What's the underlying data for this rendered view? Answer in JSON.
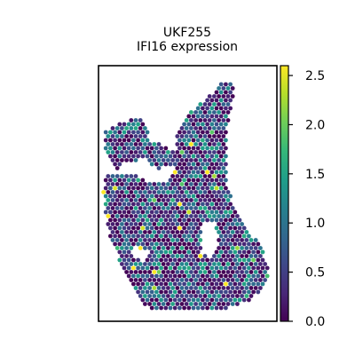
{
  "chart_data": {
    "type": "scatter",
    "title": "UKF255",
    "subtitle": "IFI16 expression",
    "xlabel": "",
    "ylabel": "",
    "grid": false,
    "legend": "none",
    "colorbar": {
      "min": 0.0,
      "max": 2.6,
      "ticks": [
        0.0,
        0.5,
        1.0,
        1.5,
        2.0,
        2.5
      ],
      "tick_labels": [
        "0.0",
        "0.5",
        "1.0",
        "1.5",
        "2.0",
        "2.5"
      ],
      "colormap": "viridis"
    },
    "point_color_stats": {
      "typical_value": 0.4,
      "max_value": 2.6,
      "note_value_min": 0.0
    }
  },
  "colors": {
    "background": "#ffffff",
    "frame": "#000000",
    "viridis": [
      "#440154",
      "#482878",
      "#3e4989",
      "#31688e",
      "#26828e",
      "#1f9e89",
      "#35b779",
      "#6ece58",
      "#b5de2b",
      "#fde725"
    ]
  }
}
